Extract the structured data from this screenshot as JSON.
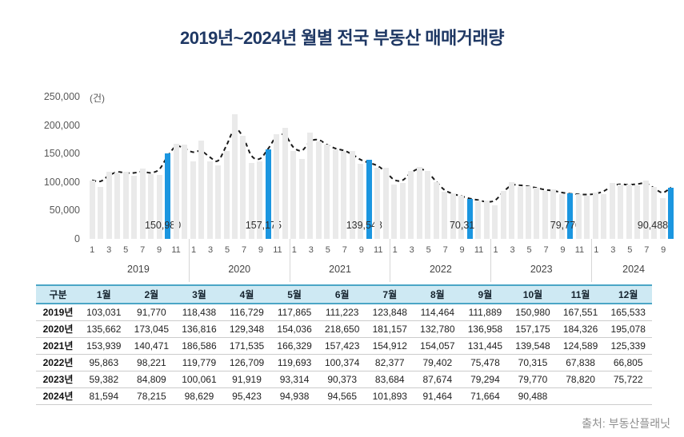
{
  "page": {
    "title": "2019년~2024년 월별 전국 부동산 매매거래량",
    "source": "출처: 부동산플래닛"
  },
  "chart_data": {
    "type": "bar",
    "title": "2019년~2024년 월별 전국 부동산 매매거래량",
    "unit_label": "(건)",
    "ylabel": "",
    "xlabel": "",
    "ylim": [
      0,
      250000
    ],
    "ytick_labels_top_to_bottom": [
      "250,000",
      "200,000",
      "150,000",
      "100,000",
      "50,000",
      "0"
    ],
    "grid": false,
    "legend_position": "none",
    "bar_color": "#EAEAEA",
    "highlight_color": "#1B96E0",
    "trend_line": {
      "style": "dashed",
      "color": "#1a1a1a",
      "description": "smoothed monthly trend over all months"
    },
    "month_tick_labels": [
      "1",
      "3",
      "5",
      "7",
      "9",
      "11"
    ],
    "highlight": {
      "month_index": 9,
      "month_name": "10월",
      "labels": [
        "150,980",
        "157,175",
        "139,548",
        "70,315",
        "79,770",
        "90,488"
      ]
    },
    "series": [
      {
        "name": "2019",
        "values": [
          103031,
          91770,
          118438,
          116729,
          117865,
          111223,
          123848,
          114464,
          111889,
          150980,
          167551,
          165533
        ]
      },
      {
        "name": "2020",
        "values": [
          135662,
          173045,
          136816,
          129348,
          154036,
          218650,
          181157,
          132780,
          136958,
          157175,
          184326,
          195078
        ]
      },
      {
        "name": "2021",
        "values": [
          153939,
          140471,
          186586,
          171535,
          166329,
          157423,
          154912,
          154057,
          131445,
          139548,
          124589,
          125339
        ]
      },
      {
        "name": "2022",
        "values": [
          95863,
          98221,
          119779,
          126709,
          119693,
          100374,
          82377,
          79402,
          75478,
          70315,
          67838,
          66805
        ]
      },
      {
        "name": "2023",
        "values": [
          59382,
          84809,
          100061,
          91919,
          93314,
          90373,
          83684,
          87674,
          79294,
          79770,
          78820,
          75722
        ]
      },
      {
        "name": "2024",
        "values": [
          81594,
          78215,
          98629,
          95423,
          94938,
          94565,
          101893,
          91464,
          71664,
          90488
        ]
      }
    ]
  },
  "table": {
    "header": [
      "구분",
      "1월",
      "2월",
      "3월",
      "4월",
      "5월",
      "6월",
      "7월",
      "8월",
      "9월",
      "10월",
      "11월",
      "12월"
    ],
    "row_label_suffix": "년",
    "columns_per_row": 12
  }
}
